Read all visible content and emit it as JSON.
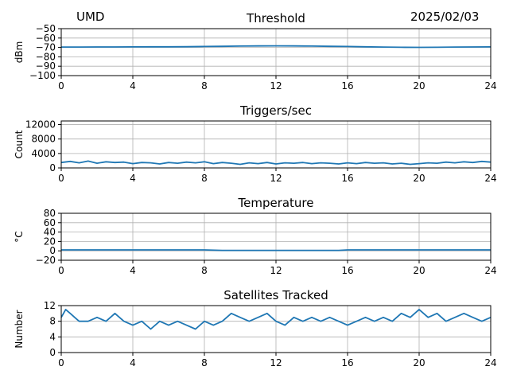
{
  "header": {
    "site": "UMD",
    "date": "2025/02/03"
  },
  "chart_data": [
    {
      "type": "line",
      "title": "Threshold",
      "xlabel": "",
      "ylabel": "dBm",
      "xlim": [
        0,
        24
      ],
      "ylim": [
        -100,
        -50
      ],
      "xticks": [
        0,
        4,
        8,
        12,
        16,
        20,
        24
      ],
      "yticks": [
        -100,
        -90,
        -80,
        -70,
        -60,
        -50
      ],
      "grid": true,
      "color": "#1f77b4",
      "series": [
        {
          "x": [
            0,
            1,
            2,
            3,
            4,
            5,
            6,
            7,
            8,
            9,
            10,
            11,
            12,
            13,
            14,
            15,
            16,
            17,
            18,
            19,
            20,
            21,
            22,
            23,
            24
          ],
          "y": [
            -69.6,
            -69.6,
            -69.5,
            -69.5,
            -69.4,
            -69.3,
            -69.3,
            -69.2,
            -69.0,
            -68.8,
            -68.6,
            -68.4,
            -68.3,
            -68.4,
            -68.6,
            -68.8,
            -69.0,
            -69.3,
            -69.6,
            -69.8,
            -69.9,
            -69.8,
            -69.6,
            -69.5,
            -69.4
          ]
        }
      ]
    },
    {
      "type": "line",
      "title": "Triggers/sec",
      "xlabel": "",
      "ylabel": "Count",
      "xlim": [
        0,
        24
      ],
      "ylim": [
        0,
        13000
      ],
      "xticks": [
        0,
        4,
        8,
        12,
        16,
        20,
        24
      ],
      "yticks": [
        0,
        4000,
        8000,
        12000
      ],
      "grid": true,
      "color": "#1f77b4",
      "series": [
        {
          "x": [
            0,
            0.5,
            1,
            1.5,
            2,
            2.5,
            3,
            3.5,
            4,
            4.5,
            5,
            5.5,
            6,
            6.5,
            7,
            7.5,
            8,
            8.5,
            9,
            9.5,
            10,
            10.5,
            11,
            11.5,
            12,
            12.5,
            13,
            13.5,
            14,
            14.5,
            15,
            15.5,
            16,
            16.5,
            17,
            17.5,
            18,
            18.5,
            19,
            19.5,
            20,
            20.5,
            21,
            21.5,
            22,
            22.5,
            23,
            23.5,
            24
          ],
          "y": [
            1500,
            1800,
            1400,
            1900,
            1300,
            1700,
            1500,
            1600,
            1200,
            1500,
            1400,
            1100,
            1500,
            1300,
            1600,
            1400,
            1700,
            1200,
            1500,
            1300,
            1000,
            1400,
            1200,
            1500,
            1100,
            1400,
            1300,
            1500,
            1200,
            1400,
            1300,
            1100,
            1400,
            1200,
            1500,
            1300,
            1400,
            1100,
            1300,
            1000,
            1200,
            1400,
            1300,
            1600,
            1400,
            1700,
            1500,
            1800,
            1600
          ]
        }
      ]
    },
    {
      "type": "line",
      "title": "Temperature",
      "xlabel": "",
      "ylabel": "°C",
      "xlim": [
        0,
        24
      ],
      "ylim": [
        -20,
        80
      ],
      "xticks": [
        0,
        4,
        8,
        12,
        16,
        20,
        24
      ],
      "yticks": [
        -20,
        0,
        20,
        40,
        60,
        80
      ],
      "grid": true,
      "color": "#1f77b4",
      "series": [
        {
          "x": [
            0,
            2,
            4,
            6,
            8,
            9,
            10,
            12,
            14,
            15.5,
            16,
            18,
            20,
            22,
            24
          ],
          "y": [
            2,
            2,
            2,
            2,
            2,
            1,
            1,
            1,
            1,
            1,
            2,
            2,
            2,
            2,
            2
          ]
        }
      ]
    },
    {
      "type": "line",
      "title": "Satellites Tracked",
      "xlabel": "",
      "ylabel": "Number",
      "xlim": [
        0,
        24
      ],
      "ylim": [
        0,
        12
      ],
      "xticks": [
        0,
        4,
        8,
        12,
        16,
        20,
        24
      ],
      "yticks": [
        0,
        4,
        8,
        12
      ],
      "grid": true,
      "color": "#1f77b4",
      "series": [
        {
          "x": [
            0,
            0.25,
            0.5,
            0.75,
            1,
            1.5,
            2,
            2.5,
            3,
            3.5,
            4,
            4.5,
            5,
            5.5,
            6,
            6.5,
            7,
            7.5,
            8,
            8.5,
            9,
            9.5,
            10,
            10.5,
            11,
            11.5,
            12,
            12.5,
            13,
            13.5,
            14,
            14.5,
            15,
            15.5,
            16,
            16.5,
            17,
            17.5,
            18,
            18.5,
            19,
            19.5,
            20,
            20.5,
            21,
            21.5,
            22,
            22.5,
            23,
            23.5,
            24
          ],
          "y": [
            9,
            11,
            10,
            9,
            8,
            8,
            9,
            8,
            10,
            8,
            7,
            8,
            6,
            8,
            7,
            8,
            7,
            6,
            8,
            7,
            8,
            10,
            9,
            8,
            9,
            10,
            8,
            7,
            9,
            8,
            9,
            8,
            9,
            8,
            7,
            8,
            9,
            8,
            9,
            8,
            10,
            9,
            11,
            9,
            10,
            8,
            9,
            10,
            9,
            8,
            9
          ]
        }
      ]
    }
  ]
}
